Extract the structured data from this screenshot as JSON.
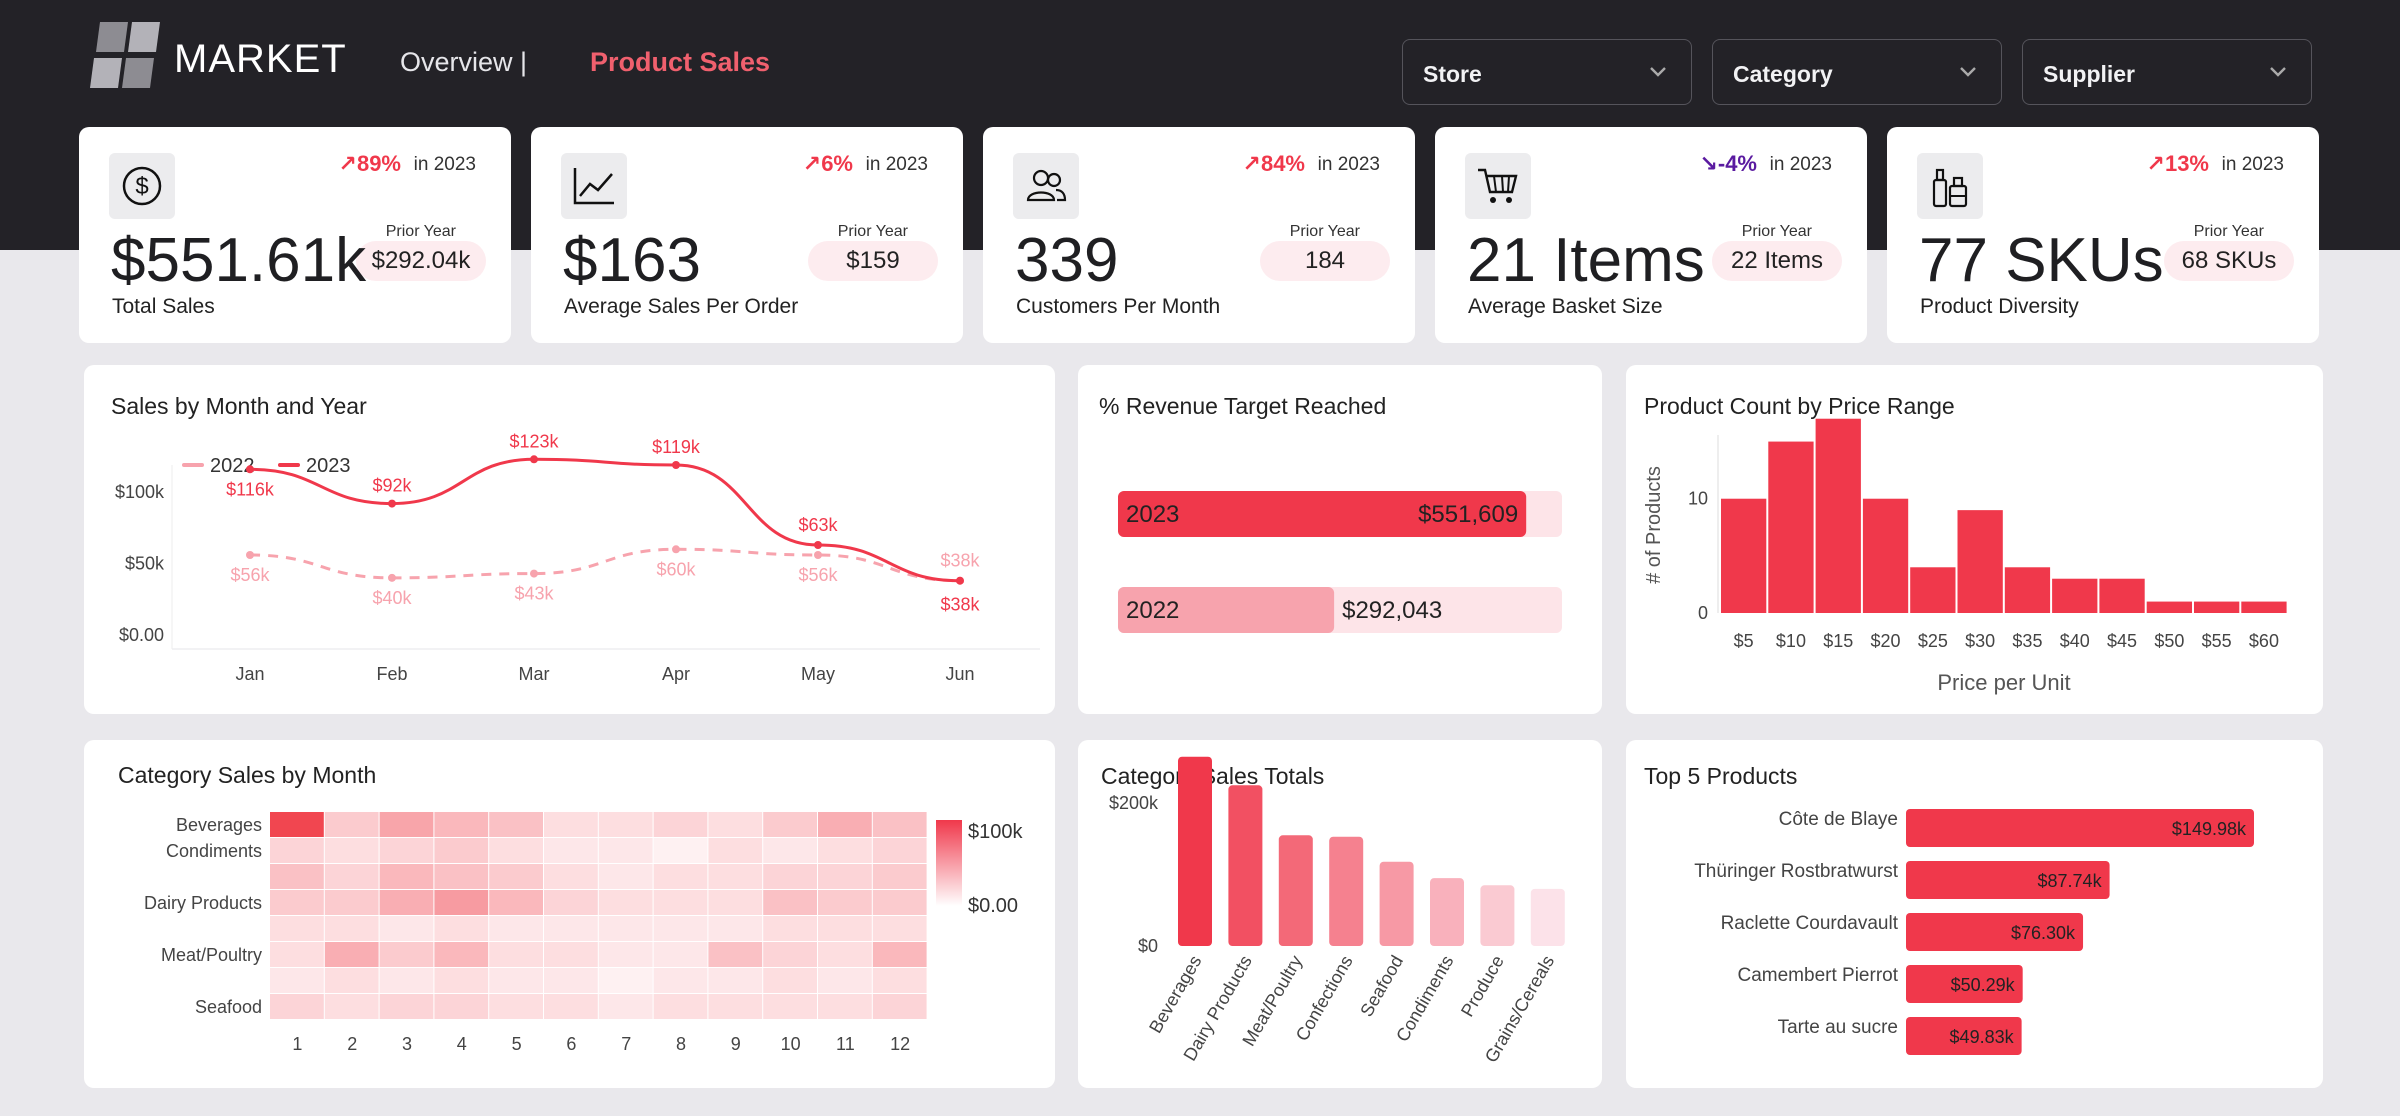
{
  "header": {
    "logo_text": "MARKET",
    "nav_overview": "Overview |",
    "nav_product": "Product Sales",
    "filters": [
      {
        "label": "Store"
      },
      {
        "label": "Category"
      },
      {
        "label": "Supplier"
      }
    ]
  },
  "kpis": [
    {
      "icon": "dollar-icon",
      "delta": "↗89%",
      "in_year": "in 2023",
      "prior_label": "Prior Year",
      "prior_value": "$292.04k",
      "value": "$551.61k",
      "label": "Total Sales"
    },
    {
      "icon": "line-chart-icon",
      "delta": "↗6%",
      "in_year": "in 2023",
      "prior_label": "Prior Year",
      "prior_value": "$159",
      "value": "$163",
      "label": "Average Sales Per Order"
    },
    {
      "icon": "users-icon",
      "delta": "↗84%",
      "in_year": "in 2023",
      "prior_label": "Prior Year",
      "prior_value": "184",
      "value": "339",
      "label": "Customers Per Month"
    },
    {
      "icon": "cart-icon",
      "delta": "↘-4%",
      "in_year": "in 2023",
      "prior_label": "Prior Year",
      "prior_value": "22 Items",
      "value": "21 Items",
      "label": "Average Basket Size"
    },
    {
      "icon": "bottles-icon",
      "delta": "↗13%",
      "in_year": "in 2023",
      "prior_label": "Prior Year",
      "prior_value": "68 SKUs",
      "value": "77 SKUs",
      "label": "Product Diversity"
    }
  ],
  "colors": {
    "accent": "#f0384b",
    "accent_light": "#f7a3ad",
    "negative": "#5a1aa0",
    "dark": "#232227"
  },
  "chart_data": [
    {
      "type": "line",
      "title": "Sales by Month and Year",
      "categories": [
        "Jan",
        "Feb",
        "Mar",
        "Apr",
        "May",
        "Jun"
      ],
      "yticks": [
        "$100k",
        "$50k",
        "$0.00"
      ],
      "ylim": [
        0,
        140000
      ],
      "legend": "top-left",
      "series": [
        {
          "name": "2022",
          "values": [
            56000,
            40000,
            43000,
            60000,
            56000,
            38000
          ],
          "labels": [
            "$56k",
            "$40k",
            "$43k",
            "$60k",
            "$56k",
            "$38k"
          ]
        },
        {
          "name": "2023",
          "values": [
            116000,
            92000,
            123000,
            119000,
            63000,
            38000
          ],
          "labels": [
            "$116k",
            "$92k",
            "$123k",
            "$119k",
            "$63k",
            "$38k"
          ]
        }
      ]
    },
    {
      "type": "bar",
      "title": "% Revenue Target Reached",
      "orientation": "horizontal",
      "target": 600000,
      "bars": [
        {
          "label": "2023",
          "value": 551609,
          "value_label": "$551,609"
        },
        {
          "label": "2022",
          "value": 292043,
          "value_label": "$292,043"
        }
      ]
    },
    {
      "type": "bar",
      "title": "Product Count by Price Range",
      "xlabel": "Price per Unit",
      "ylabel": "# of Products",
      "categories": [
        "$5",
        "$10",
        "$15",
        "$20",
        "$25",
        "$30",
        "$35",
        "$40",
        "$45",
        "$50",
        "$55",
        "$60"
      ],
      "values": [
        10,
        15,
        17,
        10,
        4,
        9,
        4,
        3,
        3,
        1,
        1,
        1
      ],
      "yticks": [
        0,
        10
      ],
      "ylim": [
        0,
        17.5
      ]
    },
    {
      "type": "heatmap",
      "title": "Category Sales by Month",
      "columns": [
        "1",
        "2",
        "3",
        "4",
        "5",
        "6",
        "7",
        "8",
        "9",
        "10",
        "11",
        "12"
      ],
      "row_labels": [
        "Beverages",
        "Condiments",
        "",
        "Dairy Products",
        "",
        "Meat/Poultry",
        "",
        "Seafood"
      ],
      "legend_max": "$100k",
      "legend_min": "$0.00",
      "values": [
        [
          95,
          25,
          45,
          35,
          30,
          15,
          15,
          20,
          15,
          25,
          40,
          30
        ],
        [
          20,
          15,
          20,
          25,
          15,
          10,
          10,
          5,
          15,
          10,
          15,
          20
        ],
        [
          30,
          20,
          35,
          30,
          25,
          15,
          10,
          15,
          15,
          20,
          20,
          25
        ],
        [
          25,
          25,
          40,
          50,
          35,
          20,
          15,
          15,
          15,
          30,
          25,
          25
        ],
        [
          15,
          15,
          10,
          15,
          10,
          10,
          10,
          10,
          10,
          15,
          15,
          15
        ],
        [
          15,
          40,
          25,
          35,
          15,
          15,
          10,
          10,
          30,
          20,
          15,
          35
        ],
        [
          10,
          15,
          10,
          15,
          10,
          10,
          5,
          10,
          10,
          15,
          10,
          15
        ],
        [
          20,
          15,
          20,
          20,
          15,
          15,
          10,
          15,
          15,
          15,
          15,
          20
        ]
      ]
    },
    {
      "type": "bar",
      "title": "Category Sales Totals",
      "categories": [
        "Beverages",
        "Dairy Products",
        "Meat/Poultry",
        "Confections",
        "Seafood",
        "Condiments",
        "Produce",
        "Grains/Cereals"
      ],
      "values": [
        265000,
        225000,
        155000,
        153000,
        118000,
        95000,
        85000,
        80000
      ],
      "yticks": [
        "$200k",
        "$0"
      ],
      "ylim": [
        0,
        280000
      ]
    },
    {
      "type": "bar",
      "title": "Top 5 Products",
      "orientation": "horizontal",
      "categories": [
        "Côte de Blaye",
        "Thüringer Rostbratwurst",
        "Raclette Courdavault",
        "Camembert Pierrot",
        "Tarte au sucre"
      ],
      "values": [
        149980,
        87740,
        76300,
        50290,
        49830
      ],
      "value_labels": [
        "$149.98k",
        "$87.74k",
        "$76.30k",
        "$50.29k",
        "$49.83k"
      ]
    }
  ]
}
